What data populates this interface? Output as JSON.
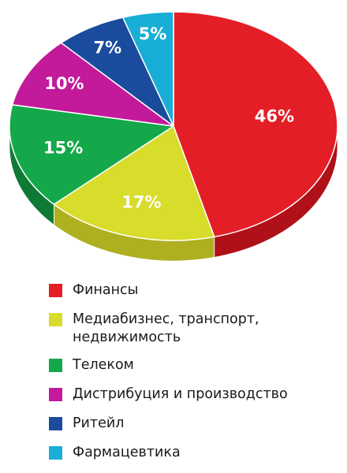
{
  "chart_data": {
    "type": "pie",
    "title": "",
    "categories": [
      "Финансы",
      "Медиабизнес, транспорт, недвижимость",
      "Телеком",
      "Дистрибуция и производство",
      "Ритейл",
      "Фармацевтика"
    ],
    "values": [
      46,
      17,
      15,
      10,
      7,
      5
    ],
    "value_labels": [
      "46%",
      "17%",
      "15%",
      "10%",
      "7%",
      "5%"
    ],
    "colors": [
      "#e41e26",
      "#d8dc2a",
      "#14a84a",
      "#c21a9a",
      "#1a4b9c",
      "#18aed6"
    ],
    "side_colors": [
      "#b01018",
      "#aeb020",
      "#0e7a36",
      "#8e1372",
      "#102f6c",
      "#0f7f9e"
    ],
    "style": "3d",
    "start": "top, clockwise",
    "legend_position": "bottom"
  },
  "legend": {
    "items": [
      {
        "lines": [
          "Финансы"
        ],
        "color": "#e41e26"
      },
      {
        "lines": [
          "Медиабизнес, транспорт,",
          "недвижимость"
        ],
        "color": "#d8dc2a"
      },
      {
        "lines": [
          "Телеком"
        ],
        "color": "#14a84a"
      },
      {
        "lines": [
          "Дистрибуция и производство"
        ],
        "color": "#c21a9a"
      },
      {
        "lines": [
          "Ритейл"
        ],
        "color": "#1a4b9c"
      },
      {
        "lines": [
          "Фармацевтика"
        ],
        "color": "#18aed6"
      }
    ]
  }
}
